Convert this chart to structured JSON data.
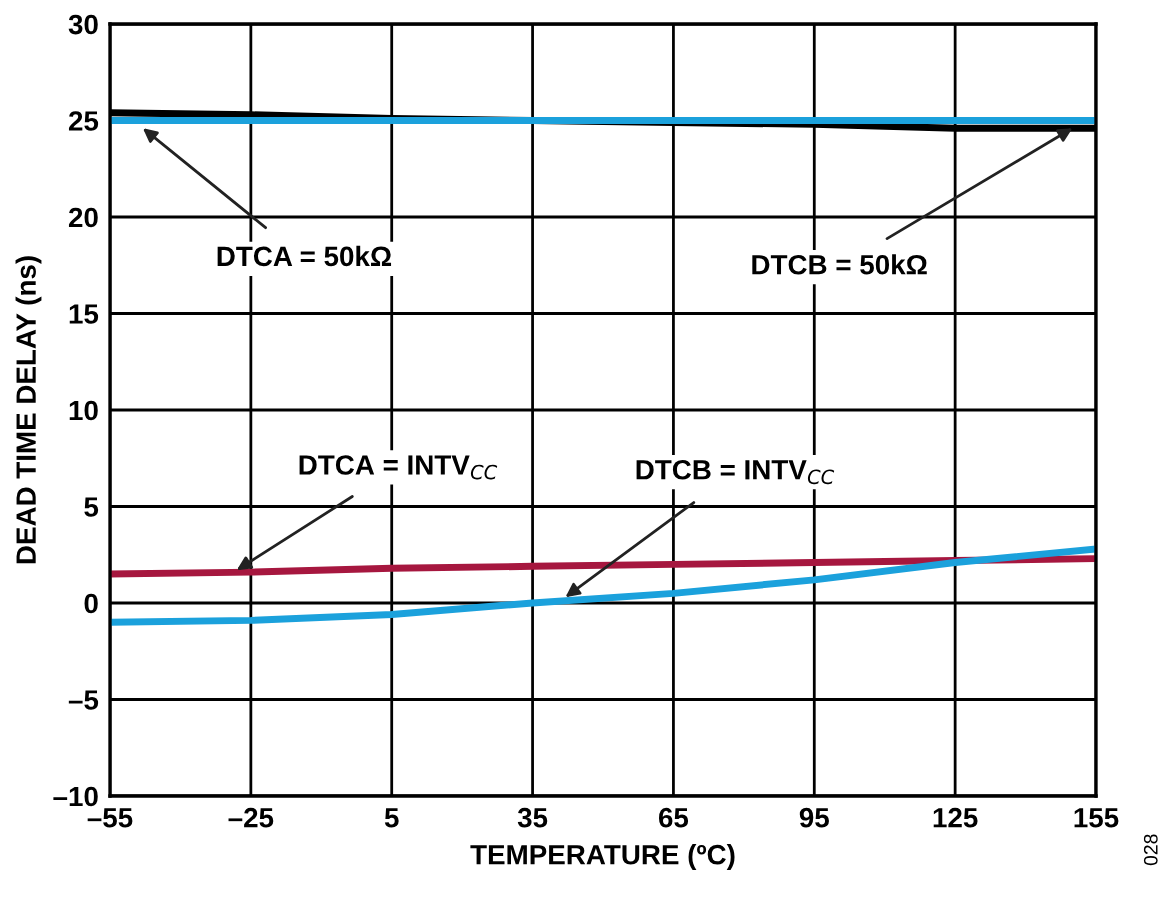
{
  "chart_data": {
    "type": "line",
    "xlabel": "TEMPERATURE (ºC)",
    "ylabel": "DEAD TIME DELAY (ns)",
    "x": [
      -55,
      -25,
      5,
      35,
      65,
      95,
      125,
      155
    ],
    "series": [
      {
        "color": "#000000",
        "values": [
          25.4,
          25.3,
          25.1,
          25.0,
          24.9,
          24.8,
          24.6,
          24.6
        ]
      },
      {
        "color": "#1ba1dc",
        "values": [
          25.0,
          25.0,
          25.0,
          25.0,
          25.0,
          25.0,
          25.0,
          25.0
        ]
      },
      {
        "color": "#a6173f",
        "values": [
          1.5,
          1.6,
          1.8,
          1.9,
          2.0,
          2.1,
          2.2,
          2.3
        ]
      },
      {
        "color": "#1ba1dc",
        "values": [
          -1.0,
          -0.9,
          -0.6,
          0.0,
          0.5,
          1.2,
          2.1,
          2.8
        ]
      }
    ],
    "xlim": [
      -55,
      155
    ],
    "xticks": [
      {
        "value": -55,
        "label": "–55"
      },
      {
        "value": -25,
        "label": "–25"
      },
      5,
      35,
      65,
      95,
      125,
      155
    ],
    "ylim": [
      -10,
      30
    ],
    "yticks": [
      {
        "value": -10,
        "label": "–10"
      },
      {
        "value": -5,
        "label": "–5"
      },
      0,
      5,
      10,
      15,
      20,
      25,
      30
    ],
    "grid": true,
    "marker": "none",
    "line_style": "solid",
    "annotations": [
      {
        "text": "DTCA = 50kΩ",
        "x": -48,
        "y": 24.6
      },
      {
        "text": "DTCB = 50kΩ",
        "x": 150,
        "y": 24.6
      },
      {
        "text": "DTCA = INTV$_{CC}$",
        "x": -28,
        "y": 1.7
      },
      {
        "text": "DTCB = INTV$_{CC}$",
        "x": 42,
        "y": 0.3
      },
      "028"
    ]
  }
}
